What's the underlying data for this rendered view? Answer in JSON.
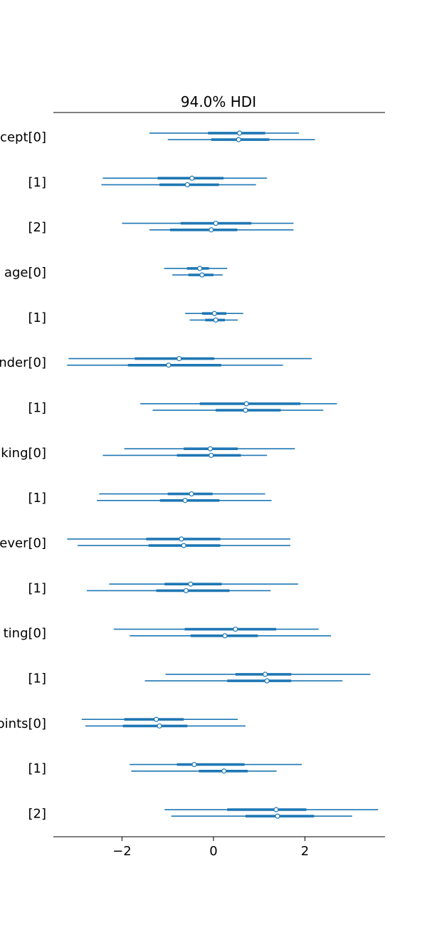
{
  "chart_data": {
    "type": "forest",
    "title": "94.0% HDI",
    "xlim": [
      -3.5,
      3.75
    ],
    "xticks": [
      {
        "value": -2,
        "label": "−2"
      },
      {
        "value": 0,
        "label": "0"
      },
      {
        "value": 2,
        "label": "2"
      }
    ],
    "color": "#1f77b4",
    "rows": [
      {
        "label": "cept[0]",
        "chains": [
          {
            "low": -1.4,
            "q1": -0.12,
            "mean": 0.57,
            "q3": 1.13,
            "high": 1.87
          },
          {
            "low": -1.0,
            "q1": -0.05,
            "mean": 0.55,
            "q3": 1.22,
            "high": 2.22
          }
        ]
      },
      {
        "label": "[1]",
        "chains": [
          {
            "low": -2.42,
            "q1": -1.22,
            "mean": -0.47,
            "q3": 0.22,
            "high": 1.17
          },
          {
            "low": -2.45,
            "q1": -1.18,
            "mean": -0.57,
            "q3": 0.12,
            "high": 0.93
          }
        ]
      },
      {
        "label": "[2]",
        "chains": [
          {
            "low": -2.0,
            "q1": -0.72,
            "mean": 0.05,
            "q3": 0.83,
            "high": 1.75
          },
          {
            "low": -1.4,
            "q1": -0.95,
            "mean": -0.05,
            "q3": 0.52,
            "high": 1.75
          }
        ]
      },
      {
        "label": "age[0]",
        "chains": [
          {
            "low": -1.08,
            "q1": -0.58,
            "mean": -0.3,
            "q3": -0.1,
            "high": 0.3
          },
          {
            "low": -0.9,
            "q1": -0.55,
            "mean": -0.25,
            "q3": 0.0,
            "high": 0.2
          }
        ]
      },
      {
        "label": "[1]",
        "chains": [
          {
            "low": -0.62,
            "q1": -0.25,
            "mean": 0.02,
            "q3": 0.28,
            "high": 0.65
          },
          {
            "low": -0.52,
            "q1": -0.18,
            "mean": 0.05,
            "q3": 0.25,
            "high": 0.53
          }
        ]
      },
      {
        "label": "nder[0]",
        "chains": [
          {
            "low": -3.17,
            "q1": -1.72,
            "mean": -0.75,
            "q3": 0.02,
            "high": 2.15
          },
          {
            "low": -3.2,
            "q1": -1.87,
            "mean": -0.98,
            "q3": 0.17,
            "high": 1.52
          }
        ]
      },
      {
        "label": "[1]",
        "chains": [
          {
            "low": -1.6,
            "q1": -0.3,
            "mean": 0.72,
            "q3": 1.9,
            "high": 2.7
          },
          {
            "low": -1.33,
            "q1": 0.05,
            "mean": 0.7,
            "q3": 1.47,
            "high": 2.4
          }
        ]
      },
      {
        "label": "king[0]",
        "chains": [
          {
            "low": -1.95,
            "q1": -0.65,
            "mean": -0.07,
            "q3": 0.53,
            "high": 1.78
          },
          {
            "low": -2.42,
            "q1": -0.8,
            "mean": -0.05,
            "q3": 0.6,
            "high": 1.17
          }
        ]
      },
      {
        "label": "[1]",
        "chains": [
          {
            "low": -2.5,
            "q1": -1.0,
            "mean": -0.48,
            "q3": -0.02,
            "high": 1.13
          },
          {
            "low": -2.55,
            "q1": -1.17,
            "mean": -0.62,
            "q3": 0.13,
            "high": 1.27
          }
        ]
      },
      {
        "label": "ever[0]",
        "chains": [
          {
            "low": -3.2,
            "q1": -1.47,
            "mean": -0.7,
            "q3": 0.15,
            "high": 1.68
          },
          {
            "low": -2.97,
            "q1": -1.42,
            "mean": -0.65,
            "q3": 0.15,
            "high": 1.68
          }
        ]
      },
      {
        "label": "[1]",
        "chains": [
          {
            "low": -2.28,
            "q1": -1.07,
            "mean": -0.5,
            "q3": 0.18,
            "high": 1.85
          },
          {
            "low": -2.77,
            "q1": -1.25,
            "mean": -0.6,
            "q3": 0.35,
            "high": 1.25
          }
        ]
      },
      {
        "label": "ting[0]",
        "chains": [
          {
            "low": -2.18,
            "q1": -0.63,
            "mean": 0.48,
            "q3": 1.37,
            "high": 2.3
          },
          {
            "low": -1.83,
            "q1": -0.5,
            "mean": 0.25,
            "q3": 0.97,
            "high": 2.57
          }
        ]
      },
      {
        "label": "[1]",
        "chains": [
          {
            "low": -1.05,
            "q1": 0.48,
            "mean": 1.13,
            "q3": 1.7,
            "high": 3.43
          },
          {
            "low": -1.5,
            "q1": 0.3,
            "mean": 1.17,
            "q3": 1.7,
            "high": 2.82
          }
        ]
      },
      {
        "label": "oints[0]",
        "chains": [
          {
            "low": -2.88,
            "q1": -1.95,
            "mean": -1.25,
            "q3": -0.65,
            "high": 0.53
          },
          {
            "low": -2.8,
            "q1": -1.98,
            "mean": -1.18,
            "q3": -0.57,
            "high": 0.7
          }
        ]
      },
      {
        "label": "[1]",
        "chains": [
          {
            "low": -1.83,
            "q1": -0.8,
            "mean": -0.42,
            "q3": 0.68,
            "high": 1.93
          },
          {
            "low": -1.8,
            "q1": -0.32,
            "mean": 0.23,
            "q3": 0.75,
            "high": 1.38
          }
        ]
      },
      {
        "label": "[2]",
        "chains": [
          {
            "low": -1.07,
            "q1": 0.3,
            "mean": 1.37,
            "q3": 2.03,
            "high": 3.6
          },
          {
            "low": -0.92,
            "q1": 0.7,
            "mean": 1.4,
            "q3": 2.2,
            "high": 3.03
          }
        ]
      }
    ]
  }
}
